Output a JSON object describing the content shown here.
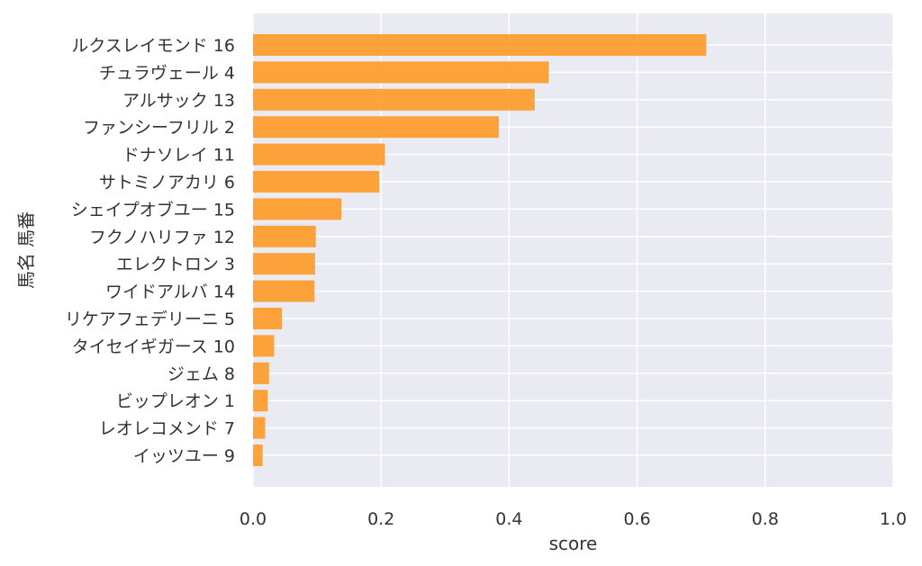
{
  "chart_data": {
    "type": "bar",
    "orientation": "horizontal",
    "title": "",
    "xlabel": "score",
    "ylabel": "馬名 馬番",
    "xlim": [
      0.0,
      1.0
    ],
    "x_ticks": [
      "0.0",
      "0.2",
      "0.4",
      "0.6",
      "0.8",
      "1.0"
    ],
    "x_tick_values": [
      0.0,
      0.2,
      0.4,
      0.6,
      0.8,
      1.0
    ],
    "grid": true,
    "legend": "none",
    "bar_color": "#ff9a26",
    "background_color": "#eaeaf2",
    "categories": [
      "ルクスレイモンド 16",
      "チュラヴェール 4",
      "アルサック 13",
      "ファンシーフリル 2",
      "ドナソレイ 11",
      "サトミノアカリ 6",
      "シェイプオブユー 15",
      "フクノハリファ 12",
      "エレクトロン 3",
      "ワイドアルバ 14",
      "リケアフェデリーニ 5",
      "タイセイギガース 10",
      "ジェム 8",
      "ビップレオン 1",
      "レオレコメンド 7",
      "イッツユー 9"
    ],
    "values": [
      0.708,
      0.462,
      0.44,
      0.384,
      0.206,
      0.197,
      0.138,
      0.098,
      0.097,
      0.096,
      0.045,
      0.033,
      0.025,
      0.023,
      0.019,
      0.015
    ]
  }
}
